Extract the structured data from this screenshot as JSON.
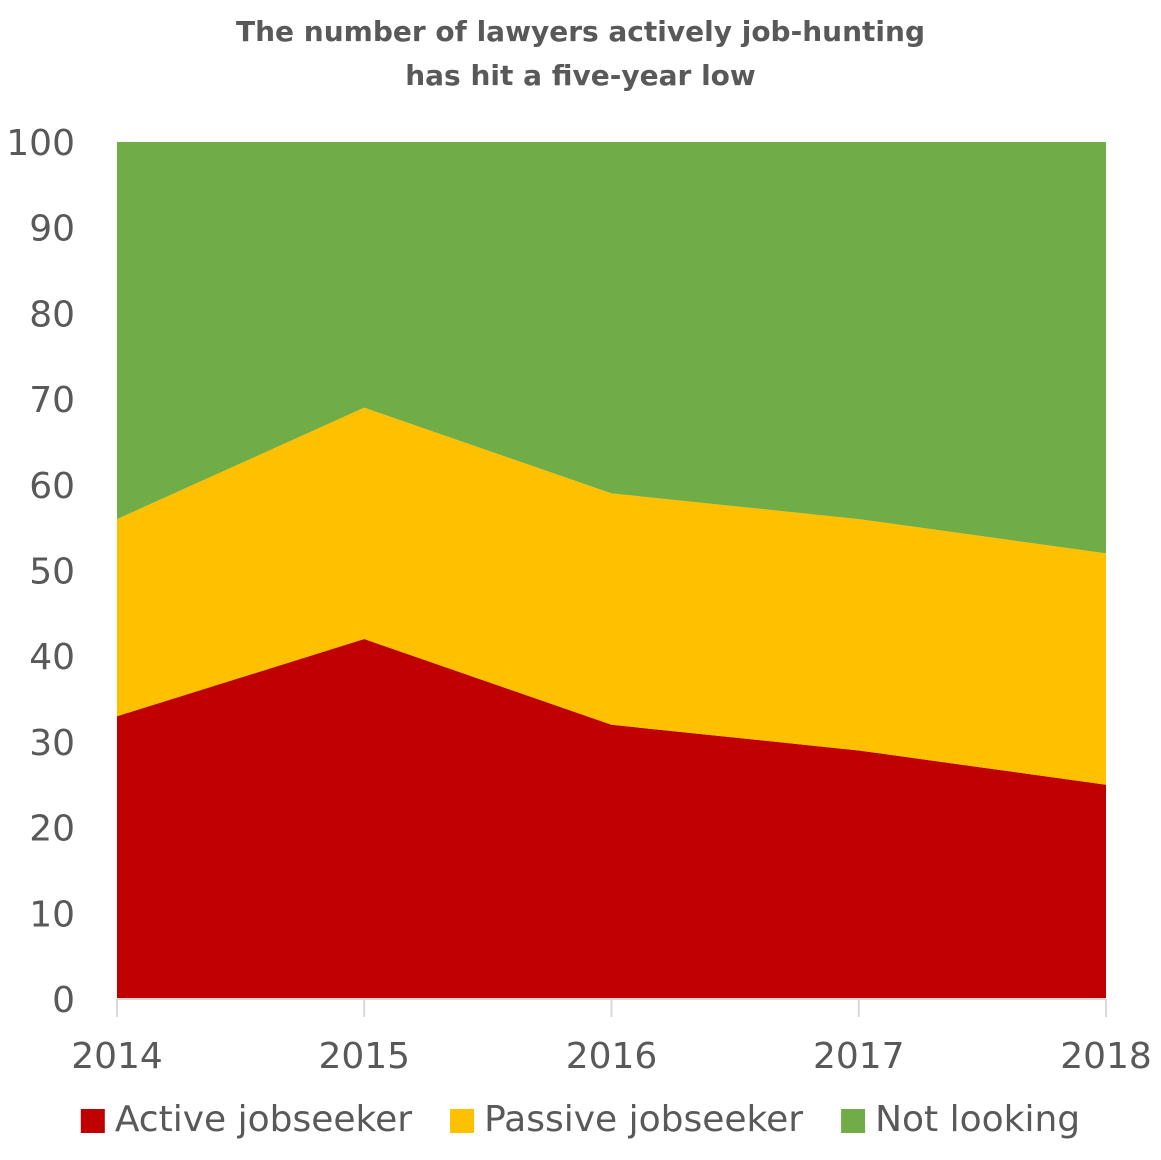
{
  "chart_data": {
    "type": "area",
    "stacked": true,
    "title": [
      "The number of lawyers actively job-hunting",
      "has hit a five-year low"
    ],
    "categories": [
      "2014",
      "2015",
      "2016",
      "2017",
      "2018"
    ],
    "series": [
      {
        "name": "Active jobseeker",
        "values": [
          33,
          42,
          32,
          29,
          25
        ],
        "color": "#C00000"
      },
      {
        "name": "Passive jobseeker",
        "values": [
          23,
          27,
          27,
          27,
          27
        ],
        "color": "#FFC000"
      },
      {
        "name": "Not looking",
        "values": [
          44,
          31,
          41,
          44,
          48
        ],
        "color": "#70AD47"
      }
    ],
    "ylim": [
      0,
      100
    ],
    "yticks": [
      "0",
      "10",
      "20",
      "30",
      "40",
      "50",
      "60",
      "70",
      "80",
      "90",
      "100"
    ],
    "grid": false,
    "legend": "bottom"
  }
}
